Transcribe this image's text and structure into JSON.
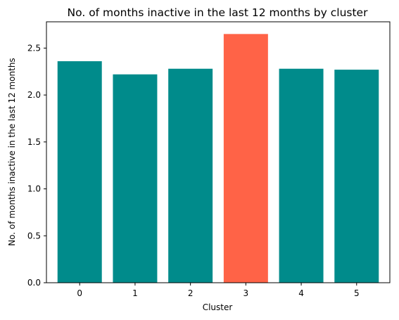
{
  "chart_data": {
    "type": "bar",
    "title": "No. of months inactive in the last 12 months by cluster",
    "xlabel": "Cluster",
    "ylabel": "No. of months inactive in the last 12 months",
    "categories": [
      "0",
      "1",
      "2",
      "3",
      "4",
      "5"
    ],
    "values": [
      2.36,
      2.22,
      2.28,
      2.65,
      2.28,
      2.27
    ],
    "ylim": [
      0,
      2.78
    ],
    "yticks": [
      0.0,
      0.5,
      1.0,
      1.5,
      2.0,
      2.5
    ],
    "ytick_labels": [
      "0.0",
      "0.5",
      "1.0",
      "1.5",
      "2.0",
      "2.5"
    ],
    "grid": false,
    "legend": "none",
    "colors": {
      "default": "#008b8b",
      "highlight": "#ff6347"
    },
    "highlight_index": 3
  }
}
